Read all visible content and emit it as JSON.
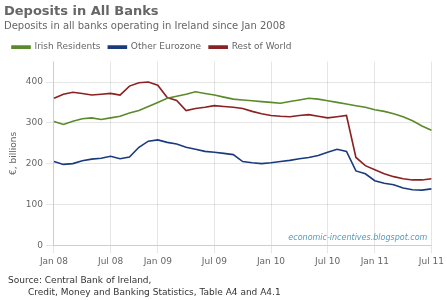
{
  "chart_data": {
    "type": "line",
    "title": "Deposits in All Banks",
    "subtitle": "Deposits in all banks operating in Ireland since Jan 2008",
    "y_label": "€, billions",
    "annotations": [
      "economic-incentives.blogspot.com",
      "Source: Central Bank of Ireland,",
      "Credit, Money and Banking Statistics, Table A4 and A4.1"
    ],
    "categories": [
      "Jan 08",
      null,
      null,
      null,
      null,
      null,
      "Jul 08",
      null,
      null,
      null,
      null,
      "Jan 09",
      null,
      null,
      null,
      null,
      null,
      "Jul 09",
      null,
      null,
      null,
      null,
      null,
      "Jan 10",
      null,
      null,
      null,
      null,
      null,
      "Jul 10",
      null,
      null,
      null,
      null,
      "Jan 11",
      null,
      null,
      null,
      null,
      null,
      "Jul 11"
    ],
    "series": [
      {
        "name": "Irish Residents",
        "color": "#5a8a2a",
        "values": [
          303,
          296,
          304,
          310,
          312,
          308,
          312,
          316,
          324,
          330,
          340,
          350,
          360,
          365,
          370,
          376,
          372,
          368,
          363,
          358,
          356,
          354,
          352,
          350,
          348,
          352,
          356,
          360,
          358,
          354,
          350,
          346,
          342,
          338,
          332,
          328,
          322,
          315,
          305,
          292,
          282
        ]
      },
      {
        "name": "Other Eurozone",
        "color": "#1a3a7e",
        "values": [
          205,
          198,
          200,
          207,
          211,
          213,
          218,
          212,
          216,
          240,
          255,
          258,
          252,
          248,
          240,
          235,
          230,
          228,
          225,
          222,
          205,
          202,
          200,
          202,
          205,
          208,
          212,
          215,
          220,
          228,
          235,
          230,
          182,
          175,
          158,
          152,
          148,
          140,
          136,
          135,
          138
        ]
      },
      {
        "name": "Rest of World",
        "color": "#8b2020",
        "values": [
          360,
          370,
          375,
          372,
          368,
          370,
          372,
          368,
          390,
          398,
          400,
          392,
          362,
          355,
          330,
          335,
          338,
          342,
          340,
          338,
          335,
          328,
          322,
          318,
          316,
          315,
          318,
          320,
          316,
          312,
          315,
          318,
          215,
          195,
          185,
          175,
          168,
          163,
          160,
          160,
          163
        ]
      }
    ],
    "ylim": [
      0,
      450
    ],
    "yticks": [
      0,
      100,
      200,
      300,
      400
    ],
    "grid": true,
    "legend": "upper left"
  }
}
